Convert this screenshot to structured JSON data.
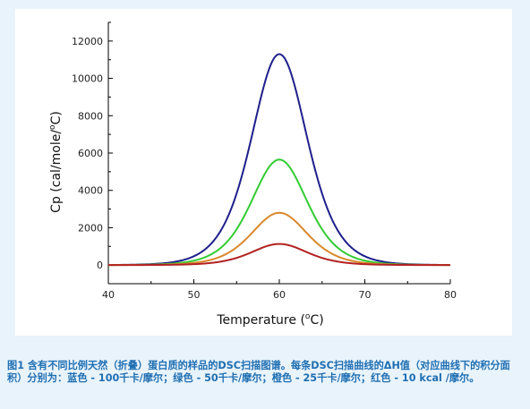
{
  "chart_data": {
    "type": "line",
    "xlabel": "Temperature",
    "xunit": "C",
    "ylabel": "Cp (cal/mole/",
    "yunit": "C)",
    "xlim": [
      40,
      80
    ],
    "ylim": [
      -1000,
      13000
    ],
    "xticks": [
      40,
      50,
      60,
      70,
      80
    ],
    "yticks": [
      0,
      2000,
      4000,
      6000,
      8000,
      10000,
      12000
    ],
    "x_range": [
      40,
      80
    ],
    "grid": false,
    "series": [
      {
        "color": "#1f1f8c",
        "peak_x": 60,
        "peak_y": 11300,
        "width_c": 4.4
      },
      {
        "color": "#33cc33",
        "peak_x": 60,
        "peak_y": 5650,
        "width_c": 4.4
      },
      {
        "color": "#d9882a",
        "peak_x": 60,
        "peak_y": 2800,
        "width_c": 4.4
      },
      {
        "color": "#b22222",
        "peak_x": 60,
        "peak_y": 1130,
        "width_c": 4.4
      }
    ]
  },
  "caption": {
    "text": "图1 含有不同比例天然（折叠）蛋白质的样品的DSC扫描图谱。每条DSC扫描曲线的ΔH值（对应曲线下的积分面积）分别为：蓝色 - 100千卡/摩尔；绿色 - 50千卡/摩尔；橙色 - 25千卡/摩尔；红色 - 10 kcal /摩尔。"
  }
}
